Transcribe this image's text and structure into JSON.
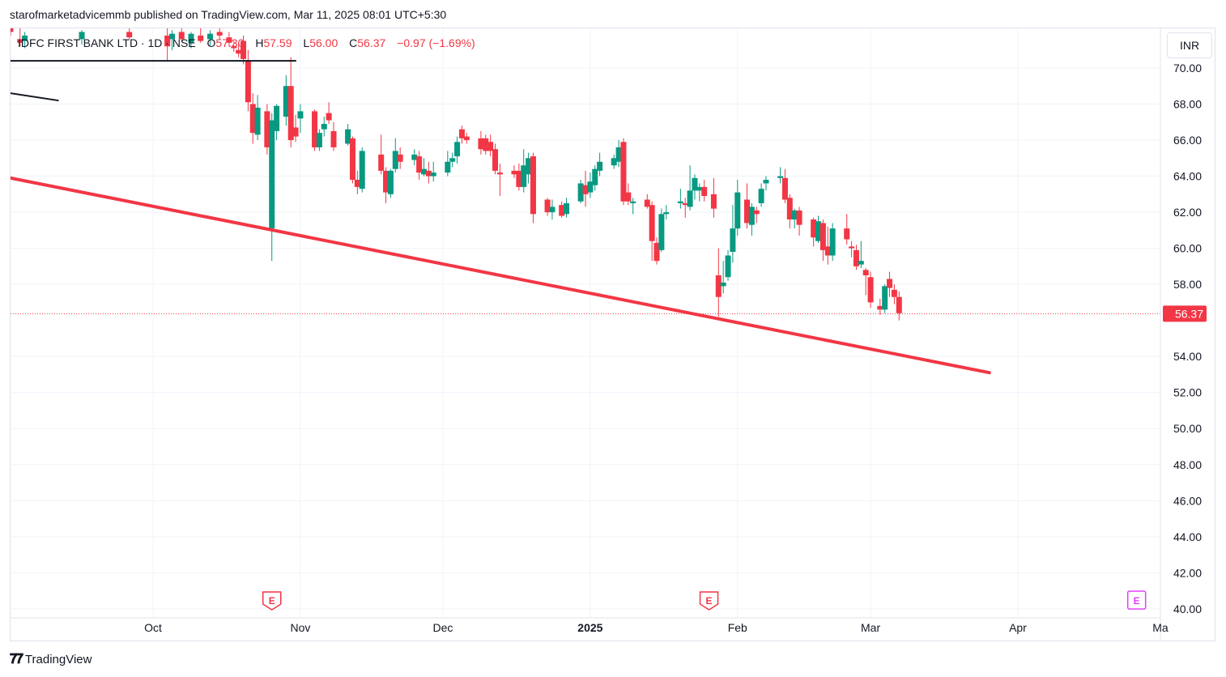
{
  "header": {
    "publisher_line": "starofmarketadvicemmb published on TradingView.com, Mar 11, 2025 08:01 UTC+5:30"
  },
  "legend": {
    "symbol": "IDFC FIRST BANK LTD · 1D · NSE",
    "open_label": "O",
    "open": "57.30",
    "high_label": "H",
    "high": "57.59",
    "low_label": "L",
    "low": "56.00",
    "close_label": "C",
    "close": "56.37",
    "change": "−0.97 (−1.69%)"
  },
  "currency": "INR",
  "footer": {
    "brand": "TradingView"
  },
  "colors": {
    "up": "#089981",
    "down": "#f23645",
    "trendline": "#f23645",
    "grid": "#f0f3fa"
  },
  "chart_data": {
    "type": "candlestick",
    "y_axis": {
      "ticks": [
        "70.00",
        "68.00",
        "66.00",
        "64.00",
        "62.00",
        "60.00",
        "58.00",
        "54.00",
        "52.00",
        "50.00",
        "48.00",
        "46.00",
        "44.00",
        "42.00",
        "40.00"
      ],
      "ylim": [
        39.5,
        72.2
      ]
    },
    "x_axis": {
      "ticks": [
        {
          "label": "Oct",
          "date": "2024-10-01"
        },
        {
          "label": "Nov",
          "date": "2024-11-01"
        },
        {
          "label": "Dec",
          "date": "2024-12-01"
        },
        {
          "label": "2025",
          "date": "2025-01-01",
          "bold": true
        },
        {
          "label": "Feb",
          "date": "2025-02-01"
        },
        {
          "label": "Mar",
          "date": "2025-03-01"
        },
        {
          "label": "Apr",
          "date": "2025-04-01"
        },
        {
          "label": "Ma",
          "date": "2025-05-01"
        }
      ],
      "xlim": [
        "2024-09-01",
        "2025-05-01"
      ]
    },
    "last_price": "56.37",
    "earnings_markers": [
      {
        "label": "E",
        "date": "2024-10-26",
        "style": "past"
      },
      {
        "label": "E",
        "date": "2025-01-26",
        "style": "past"
      },
      {
        "label": "E",
        "date": "2025-04-26",
        "style": "future"
      }
    ],
    "trendlines": [
      {
        "color": "#f23645",
        "points": [
          [
            "2024-09-01",
            63.9
          ],
          [
            "2025-03-26",
            53.1
          ]
        ]
      },
      {
        "color": "#131722",
        "points": [
          [
            "2024-09-01",
            70.4
          ],
          [
            "2024-10-31",
            70.4
          ]
        ]
      },
      {
        "color": "#131722",
        "points": [
          [
            "2024-09-01",
            68.6
          ],
          [
            "2024-09-11",
            68.2
          ]
        ]
      }
    ],
    "candles": [
      {
        "d": "2024-09-01",
        "o": 72.2,
        "h": 72.6,
        "l": 71.8,
        "c": 72.0
      },
      {
        "d": "2024-09-03",
        "o": 71.6,
        "h": 72.2,
        "l": 71.2,
        "c": 71.4
      },
      {
        "d": "2024-09-04",
        "o": 71.5,
        "h": 72.0,
        "l": 71.1,
        "c": 71.8
      },
      {
        "d": "2024-09-16",
        "o": 71.6,
        "h": 72.1,
        "l": 71.3,
        "c": 72.0
      },
      {
        "d": "2024-09-26",
        "o": 72.0,
        "h": 72.4,
        "l": 71.6,
        "c": 71.7
      },
      {
        "d": "2024-10-04",
        "o": 71.8,
        "h": 72.3,
        "l": 70.4,
        "c": 71.2
      },
      {
        "d": "2024-10-05",
        "o": 71.6,
        "h": 72.1,
        "l": 71.0,
        "c": 71.9
      },
      {
        "d": "2024-10-07",
        "o": 72.0,
        "h": 72.3,
        "l": 71.5,
        "c": 71.6
      },
      {
        "d": "2024-10-09",
        "o": 71.4,
        "h": 72.0,
        "l": 71.1,
        "c": 71.9
      },
      {
        "d": "2024-10-11",
        "o": 71.8,
        "h": 72.2,
        "l": 71.4,
        "c": 71.5
      },
      {
        "d": "2024-10-13",
        "o": 71.6,
        "h": 72.1,
        "l": 71.2,
        "c": 71.9
      },
      {
        "d": "2024-10-15",
        "o": 72.0,
        "h": 72.3,
        "l": 71.6,
        "c": 71.8
      },
      {
        "d": "2024-10-17",
        "o": 71.7,
        "h": 72.0,
        "l": 71.2,
        "c": 71.4
      },
      {
        "d": "2024-10-18",
        "o": 71.2,
        "h": 71.5,
        "l": 70.9,
        "c": 71.1
      },
      {
        "d": "2024-10-19",
        "o": 71.0,
        "h": 71.4,
        "l": 70.6,
        "c": 70.8
      },
      {
        "d": "2024-10-20",
        "o": 71.5,
        "h": 71.8,
        "l": 70.2,
        "c": 70.5
      },
      {
        "d": "2024-10-21",
        "o": 70.4,
        "h": 71.0,
        "l": 67.6,
        "c": 68.1
      },
      {
        "d": "2024-10-22",
        "o": 68.0,
        "h": 68.6,
        "l": 65.8,
        "c": 66.4
      },
      {
        "d": "2024-10-23",
        "o": 66.3,
        "h": 68.5,
        "l": 66.0,
        "c": 67.8
      },
      {
        "d": "2024-10-25",
        "o": 67.6,
        "h": 68.0,
        "l": 65.2,
        "c": 65.6
      },
      {
        "d": "2024-10-26",
        "o": 61.1,
        "h": 67.5,
        "l": 59.3,
        "c": 67.1
      },
      {
        "d": "2024-10-27",
        "o": 66.5,
        "h": 68.0,
        "l": 66.0,
        "c": 67.9
      },
      {
        "d": "2024-10-29",
        "o": 67.3,
        "h": 69.6,
        "l": 66.8,
        "c": 69.0
      },
      {
        "d": "2024-10-30",
        "o": 69.0,
        "h": 70.6,
        "l": 65.6,
        "c": 66.0
      },
      {
        "d": "2024-10-31",
        "o": 66.7,
        "h": 67.4,
        "l": 65.9,
        "c": 66.2
      },
      {
        "d": "2024-11-01",
        "o": 67.2,
        "h": 68.0,
        "l": 66.4,
        "c": 67.6
      },
      {
        "d": "2024-11-04",
        "o": 67.6,
        "h": 67.7,
        "l": 65.4,
        "c": 65.6
      },
      {
        "d": "2024-11-05",
        "o": 65.6,
        "h": 66.6,
        "l": 65.4,
        "c": 66.4
      },
      {
        "d": "2024-11-06",
        "o": 66.6,
        "h": 67.3,
        "l": 66.2,
        "c": 66.9
      },
      {
        "d": "2024-11-07",
        "o": 67.5,
        "h": 68.1,
        "l": 66.9,
        "c": 67.1
      },
      {
        "d": "2024-11-08",
        "o": 66.5,
        "h": 67.0,
        "l": 65.4,
        "c": 65.6
      },
      {
        "d": "2024-11-11",
        "o": 65.8,
        "h": 66.9,
        "l": 65.7,
        "c": 66.6
      },
      {
        "d": "2024-11-12",
        "o": 66.1,
        "h": 66.2,
        "l": 63.6,
        "c": 63.8
      },
      {
        "d": "2024-11-13",
        "o": 63.8,
        "h": 64.3,
        "l": 63.0,
        "c": 63.4
      },
      {
        "d": "2024-11-14",
        "o": 63.3,
        "h": 65.6,
        "l": 63.1,
        "c": 65.4
      },
      {
        "d": "2024-11-18",
        "o": 65.2,
        "h": 66.3,
        "l": 64.1,
        "c": 64.3
      },
      {
        "d": "2024-11-19",
        "o": 64.3,
        "h": 64.5,
        "l": 62.5,
        "c": 63.1
      },
      {
        "d": "2024-11-20",
        "o": 63.0,
        "h": 64.4,
        "l": 62.8,
        "c": 64.3
      },
      {
        "d": "2024-11-21",
        "o": 64.4,
        "h": 66.1,
        "l": 64.2,
        "c": 65.4
      },
      {
        "d": "2024-11-22",
        "o": 65.2,
        "h": 65.6,
        "l": 64.4,
        "c": 64.8
      },
      {
        "d": "2024-11-25",
        "o": 64.9,
        "h": 65.5,
        "l": 64.6,
        "c": 65.2
      },
      {
        "d": "2024-11-26",
        "o": 65.1,
        "h": 65.4,
        "l": 63.8,
        "c": 64.2
      },
      {
        "d": "2024-11-27",
        "o": 64.1,
        "h": 65.0,
        "l": 64.0,
        "c": 64.4
      },
      {
        "d": "2024-11-28",
        "o": 64.3,
        "h": 64.8,
        "l": 63.6,
        "c": 64.0
      },
      {
        "d": "2024-11-29",
        "o": 64.0,
        "h": 64.8,
        "l": 63.7,
        "c": 64.2
      },
      {
        "d": "2024-12-02",
        "o": 64.2,
        "h": 65.4,
        "l": 64.0,
        "c": 64.8
      },
      {
        "d": "2024-12-03",
        "o": 64.8,
        "h": 65.3,
        "l": 64.5,
        "c": 65.0
      },
      {
        "d": "2024-12-04",
        "o": 65.1,
        "h": 66.2,
        "l": 64.7,
        "c": 65.9
      },
      {
        "d": "2024-12-05",
        "o": 66.6,
        "h": 66.8,
        "l": 65.8,
        "c": 66.1
      },
      {
        "d": "2024-12-06",
        "o": 66.2,
        "h": 66.4,
        "l": 65.8,
        "c": 66.0
      },
      {
        "d": "2024-12-09",
        "o": 66.1,
        "h": 66.5,
        "l": 65.2,
        "c": 65.5
      },
      {
        "d": "2024-12-10",
        "o": 66.1,
        "h": 66.3,
        "l": 65.2,
        "c": 65.4
      },
      {
        "d": "2024-12-11",
        "o": 65.9,
        "h": 66.3,
        "l": 65.1,
        "c": 65.4
      },
      {
        "d": "2024-12-12",
        "o": 65.5,
        "h": 65.8,
        "l": 64.1,
        "c": 64.3
      },
      {
        "d": "2024-12-13",
        "o": 64.2,
        "h": 64.7,
        "l": 62.9,
        "c": 64.1
      },
      {
        "d": "2024-12-16",
        "o": 64.3,
        "h": 64.6,
        "l": 63.9,
        "c": 64.1
      },
      {
        "d": "2024-12-17",
        "o": 64.3,
        "h": 64.7,
        "l": 63.2,
        "c": 63.4
      },
      {
        "d": "2024-12-18",
        "o": 63.4,
        "h": 65.5,
        "l": 63.1,
        "c": 64.6
      },
      {
        "d": "2024-12-19",
        "o": 64.1,
        "h": 65.3,
        "l": 63.6,
        "c": 65.0
      },
      {
        "d": "2024-12-20",
        "o": 65.1,
        "h": 65.3,
        "l": 61.4,
        "c": 61.9
      },
      {
        "d": "2024-12-23",
        "o": 62.7,
        "h": 62.8,
        "l": 61.8,
        "c": 62.0
      },
      {
        "d": "2024-12-24",
        "o": 62.0,
        "h": 62.7,
        "l": 61.6,
        "c": 62.3
      },
      {
        "d": "2024-12-26",
        "o": 62.4,
        "h": 62.6,
        "l": 61.7,
        "c": 61.8
      },
      {
        "d": "2024-12-27",
        "o": 61.9,
        "h": 62.8,
        "l": 61.7,
        "c": 62.5
      },
      {
        "d": "2024-12-30",
        "o": 62.6,
        "h": 63.8,
        "l": 62.5,
        "c": 63.6
      },
      {
        "d": "2024-12-31",
        "o": 63.5,
        "h": 64.3,
        "l": 62.3,
        "c": 63.0
      },
      {
        "d": "2025-01-01",
        "o": 63.1,
        "h": 64.2,
        "l": 62.8,
        "c": 63.7
      },
      {
        "d": "2025-01-02",
        "o": 63.5,
        "h": 64.6,
        "l": 63.2,
        "c": 64.4
      },
      {
        "d": "2025-01-03",
        "o": 64.3,
        "h": 65.3,
        "l": 64.0,
        "c": 64.8
      },
      {
        "d": "2025-01-06",
        "o": 64.6,
        "h": 65.2,
        "l": 64.4,
        "c": 65.0
      },
      {
        "d": "2025-01-07",
        "o": 64.8,
        "h": 66.0,
        "l": 64.5,
        "c": 65.6
      },
      {
        "d": "2025-01-08",
        "o": 65.9,
        "h": 66.1,
        "l": 62.4,
        "c": 62.6
      },
      {
        "d": "2025-01-09",
        "o": 63.1,
        "h": 63.6,
        "l": 62.4,
        "c": 62.6
      },
      {
        "d": "2025-01-10",
        "o": 62.5,
        "h": 62.8,
        "l": 61.9,
        "c": 62.6
      },
      {
        "d": "2025-01-13",
        "o": 62.7,
        "h": 63.0,
        "l": 62.2,
        "c": 62.3
      },
      {
        "d": "2025-01-14",
        "o": 62.4,
        "h": 62.6,
        "l": 59.3,
        "c": 60.4
      },
      {
        "d": "2025-01-15",
        "o": 60.3,
        "h": 60.6,
        "l": 59.1,
        "c": 59.3
      },
      {
        "d": "2025-01-16",
        "o": 59.9,
        "h": 62.2,
        "l": 59.8,
        "c": 61.9
      },
      {
        "d": "2025-01-17",
        "o": 61.9,
        "h": 62.4,
        "l": 61.6,
        "c": 62.0
      },
      {
        "d": "2025-01-20",
        "o": 62.5,
        "h": 63.3,
        "l": 62.2,
        "c": 62.6
      },
      {
        "d": "2025-01-21",
        "o": 62.5,
        "h": 62.8,
        "l": 61.7,
        "c": 62.4
      },
      {
        "d": "2025-01-22",
        "o": 62.3,
        "h": 64.6,
        "l": 62.1,
        "c": 63.2
      },
      {
        "d": "2025-01-23",
        "o": 63.2,
        "h": 64.1,
        "l": 62.7,
        "c": 63.9
      },
      {
        "d": "2025-01-24",
        "o": 63.2,
        "h": 63.6,
        "l": 62.6,
        "c": 63.4
      },
      {
        "d": "2025-01-25",
        "o": 63.4,
        "h": 63.8,
        "l": 62.6,
        "c": 62.9
      },
      {
        "d": "2025-01-27",
        "o": 63.0,
        "h": 63.9,
        "l": 61.7,
        "c": 62.2
      },
      {
        "d": "2025-01-28",
        "o": 58.5,
        "h": 60.0,
        "l": 56.2,
        "c": 57.3
      },
      {
        "d": "2025-01-29",
        "o": 57.9,
        "h": 59.3,
        "l": 57.5,
        "c": 58.1
      },
      {
        "d": "2025-01-30",
        "o": 58.4,
        "h": 59.9,
        "l": 58.2,
        "c": 59.6
      },
      {
        "d": "2025-01-31",
        "o": 59.8,
        "h": 62.4,
        "l": 59.2,
        "c": 61.1
      },
      {
        "d": "2025-02-01",
        "o": 61.1,
        "h": 63.8,
        "l": 60.7,
        "c": 63.1
      },
      {
        "d": "2025-02-03",
        "o": 62.7,
        "h": 63.6,
        "l": 61.1,
        "c": 61.4
      },
      {
        "d": "2025-02-04",
        "o": 61.3,
        "h": 62.5,
        "l": 60.7,
        "c": 62.3
      },
      {
        "d": "2025-02-05",
        "o": 62.1,
        "h": 62.3,
        "l": 61.4,
        "c": 61.9
      },
      {
        "d": "2025-02-06",
        "o": 62.5,
        "h": 63.6,
        "l": 62.3,
        "c": 63.3
      },
      {
        "d": "2025-02-07",
        "o": 63.6,
        "h": 64.0,
        "l": 63.2,
        "c": 63.8
      },
      {
        "d": "2025-02-10",
        "o": 63.9,
        "h": 64.5,
        "l": 63.6,
        "c": 64.0
      },
      {
        "d": "2025-02-11",
        "o": 63.9,
        "h": 64.4,
        "l": 62.5,
        "c": 62.7
      },
      {
        "d": "2025-02-12",
        "o": 62.8,
        "h": 63.0,
        "l": 61.1,
        "c": 61.6
      },
      {
        "d": "2025-02-13",
        "o": 61.6,
        "h": 62.2,
        "l": 61.1,
        "c": 62.1
      },
      {
        "d": "2025-02-14",
        "o": 62.1,
        "h": 62.3,
        "l": 60.7,
        "c": 61.3
      },
      {
        "d": "2025-02-17",
        "o": 61.6,
        "h": 61.7,
        "l": 60.1,
        "c": 60.6
      },
      {
        "d": "2025-02-18",
        "o": 60.4,
        "h": 61.8,
        "l": 60.3,
        "c": 61.5
      },
      {
        "d": "2025-02-19",
        "o": 61.4,
        "h": 61.6,
        "l": 59.3,
        "c": 59.9
      },
      {
        "d": "2025-02-20",
        "o": 60.1,
        "h": 61.2,
        "l": 59.1,
        "c": 59.6
      },
      {
        "d": "2025-02-21",
        "o": 59.6,
        "h": 61.4,
        "l": 59.3,
        "c": 61.1
      },
      {
        "d": "2025-02-24",
        "o": 61.1,
        "h": 61.9,
        "l": 60.2,
        "c": 60.5
      },
      {
        "d": "2025-02-25",
        "o": 60.1,
        "h": 60.4,
        "l": 59.5,
        "c": 60.0
      },
      {
        "d": "2025-02-26",
        "o": 59.9,
        "h": 60.2,
        "l": 58.8,
        "c": 59.0
      },
      {
        "d": "2025-02-27",
        "o": 59.1,
        "h": 60.4,
        "l": 58.9,
        "c": 59.3
      },
      {
        "d": "2025-02-28",
        "o": 58.8,
        "h": 58.9,
        "l": 57.4,
        "c": 58.5
      },
      {
        "d": "2025-03-01",
        "o": 58.4,
        "h": 58.7,
        "l": 56.7,
        "c": 57.0
      },
      {
        "d": "2025-03-03",
        "o": 56.8,
        "h": 57.2,
        "l": 56.3,
        "c": 56.6
      },
      {
        "d": "2025-03-04",
        "o": 56.6,
        "h": 58.0,
        "l": 56.4,
        "c": 57.9
      },
      {
        "d": "2025-03-05",
        "o": 58.3,
        "h": 58.7,
        "l": 57.3,
        "c": 57.8
      },
      {
        "d": "2025-03-06",
        "o": 57.7,
        "h": 58.0,
        "l": 56.9,
        "c": 57.3
      },
      {
        "d": "2025-03-07",
        "o": 57.3,
        "h": 57.6,
        "l": 56.0,
        "c": 56.4
      }
    ]
  }
}
